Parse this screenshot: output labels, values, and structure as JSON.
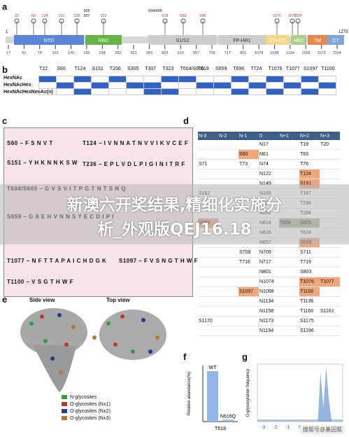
{
  "panels": {
    "a": "a",
    "b": "b",
    "c": "c",
    "d": "d",
    "e": "e",
    "f": "f",
    "g": "g"
  },
  "panel_a": {
    "start": "1",
    "end": "1273",
    "top_sites": [
      "17",
      "61",
      "74",
      "122",
      "149",
      "165",
      "234",
      "282",
      "331",
      "343",
      "603",
      "616",
      "657",
      "709",
      "717",
      "801",
      "1074",
      "1098",
      "1134",
      "1158",
      "1173",
      "1194"
    ],
    "top_labels_red": [
      "22",
      "60",
      "124",
      "151",
      "236",
      "323",
      "618",
      "659",
      "696",
      "1076",
      "1077",
      "1100"
    ],
    "top_labels_black": [
      "305",
      "307",
      "604/605"
    ],
    "domains": [
      {
        "name": "NTD",
        "color": "#5b86d6"
      },
      {
        "name": "RBD",
        "color": "#67b346"
      },
      {
        "name": "S1/S2",
        "color": "#cccccc"
      },
      {
        "name": "FP-HR1",
        "color": "#cccccc"
      },
      {
        "name": "CH-CD",
        "color": "#f3d789"
      },
      {
        "name": "HR2",
        "color": "#a9d08e"
      },
      {
        "name": "TM",
        "color": "#e58a4a"
      },
      {
        "name": "CT",
        "color": "#7ea6d8"
      }
    ]
  },
  "panel_b": {
    "columns": [
      "T22",
      "S60",
      "T124",
      "S151",
      "T236",
      "S305",
      "T307",
      "T323",
      "T604/S605",
      "T618",
      "S659",
      "T696",
      "T724",
      "T1076",
      "T1077",
      "S1097",
      "T1100"
    ],
    "rows": [
      {
        "label": "HexNAc",
        "cells": [
          1,
          0,
          1,
          0,
          1,
          0,
          0,
          1,
          1,
          0,
          0,
          1,
          0,
          1,
          0,
          1,
          0
        ]
      },
      {
        "label": "HexNAcHex",
        "cells": [
          0,
          1,
          0,
          1,
          0,
          1,
          1,
          0,
          0,
          1,
          1,
          0,
          1,
          0,
          1,
          0,
          1
        ]
      },
      {
        "label": "HexNAcHexNeuAc(n)",
        "cells": [
          0,
          0,
          1,
          0,
          0,
          0,
          1,
          1,
          0,
          0,
          0,
          1,
          0,
          1,
          0,
          1,
          0
        ]
      }
    ]
  },
  "panel_c": {
    "sequences": [
      {
        "pos": "S60",
        "seq": "F S N V T"
      },
      {
        "pos": "S151",
        "seq": "Y H K N N K S W"
      },
      {
        "pos": "T604/S605",
        "seq": "G V S V I T P G T N T S N Q"
      },
      {
        "pos": "S659",
        "seq": "G A E H V N N S Y E C D I P I"
      },
      {
        "pos": "T1077",
        "seq": "N F T T A P A I C H D G K"
      },
      {
        "pos": "T1100",
        "seq": "V S G T H W F"
      },
      {
        "pos": "T124",
        "seq": "I V N N A T N V V I K V C E F"
      },
      {
        "pos": "T236",
        "seq": "E P L V D L P I G I N I T R F"
      },
      {
        "pos": "S1097",
        "seq": "F V S N G T H W F"
      }
    ]
  },
  "panel_d": {
    "headers": [
      "N-3",
      "N-2",
      "N-1",
      "0",
      "N+1",
      "N+2",
      "N+3"
    ],
    "rows": [
      [
        "",
        "",
        "",
        "N17",
        "",
        "T19",
        "T20"
      ],
      [
        "",
        "",
        "S60",
        "N61",
        "",
        "T63",
        ""
      ],
      [
        "S71",
        "",
        "T73",
        "N74",
        "",
        "T76",
        ""
      ],
      [
        "",
        "",
        "",
        "N122",
        "",
        "T124",
        ""
      ],
      [
        "",
        "",
        "",
        "N149",
        "",
        "S151",
        ""
      ],
      [
        "S162",
        "",
        "",
        "N165",
        "",
        "T167",
        ""
      ],
      [
        "",
        "",
        "",
        "N234",
        "",
        "T236",
        ""
      ],
      [
        "",
        "",
        "",
        "N282",
        "",
        "T284",
        ""
      ],
      [
        "S659",
        "",
        "",
        "N616",
        "T604",
        "S605",
        ""
      ],
      [
        "",
        "",
        "",
        "N616",
        "",
        "T618",
        ""
      ],
      [
        "",
        "",
        "",
        "N657",
        "",
        "S659",
        ""
      ],
      [
        "",
        "",
        "S708",
        "N709",
        "",
        "S711",
        ""
      ],
      [
        "",
        "",
        "T716",
        "N717",
        "",
        "T719",
        ""
      ],
      [
        "",
        "",
        "",
        "N801",
        "",
        "S803",
        ""
      ],
      [
        "",
        "",
        "",
        "N1074",
        "",
        "T1076",
        "T1077"
      ],
      [
        "",
        "",
        "S1097",
        "N1098",
        "",
        "T1100",
        ""
      ],
      [
        "",
        "",
        "",
        "N1134",
        "",
        "T1136",
        ""
      ],
      [
        "",
        "",
        "",
        "N1158",
        "",
        "T1160",
        "S1161"
      ],
      [
        "S1170",
        "",
        "",
        "N1173",
        "",
        "S1175",
        ""
      ],
      [
        "",
        "",
        "",
        "N1194",
        "",
        "S1196",
        ""
      ]
    ]
  },
  "panel_e": {
    "side_view": "Side view",
    "top_view": "Top view",
    "legend": [
      {
        "label": "N-glycosites",
        "color": "#2e9e3f"
      },
      {
        "label": "O-glycosites (N±1)",
        "color": "#c0392b"
      },
      {
        "label": "O-glycosites (N±2)",
        "color": "#1f3c99"
      },
      {
        "label": "O-glycosites (N±3)",
        "color": "#b07a2a"
      }
    ]
  },
  "chart_data": [
    {
      "type": "bar",
      "categories": [
        "WT",
        "N616Q"
      ],
      "values": [
        27,
        1
      ],
      "ylim": [
        0,
        30
      ],
      "xlabel": "T618",
      "ylabel": "Relative abundance(%)"
    },
    {
      "type": "area",
      "xlabel": "",
      "ylabel": "O-glycosylation frequency",
      "x": [
        -3,
        -2,
        -1,
        0,
        1,
        2,
        3
      ],
      "tick_labels": [
        "-3",
        "-2",
        "-1",
        "0",
        "1",
        "2",
        "3"
      ]
    }
  ],
  "watermark": {
    "line1": "新澳六开奖结果,精细化实施分",
    "line2": "析_外观版QEJ16.18"
  },
  "stamp": "搜狐号@基因狐"
}
